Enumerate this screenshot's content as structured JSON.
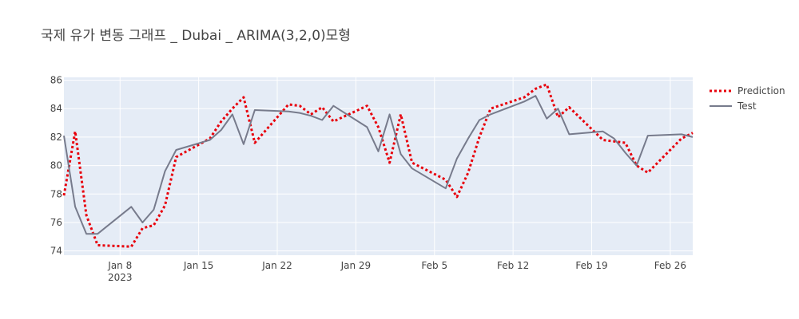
{
  "chart_data": {
    "type": "line",
    "title": "국제 유가 변동 그래프 _ Dubai _ ARIMA(3,2,0)모형",
    "xlabel": "",
    "ylabel": "",
    "x_range": [
      "2023-01-03",
      "2023-02-28"
    ],
    "ylim": [
      73.7,
      86.2
    ],
    "y_ticks": [
      74,
      76,
      78,
      80,
      82,
      84,
      86
    ],
    "x_ticks": [
      {
        "date": "2023-01-08",
        "label": "Jan 8",
        "sublabel": "2023"
      },
      {
        "date": "2023-01-15",
        "label": "Jan 15",
        "sublabel": ""
      },
      {
        "date": "2023-01-22",
        "label": "Jan 22",
        "sublabel": ""
      },
      {
        "date": "2023-01-29",
        "label": "Jan 29",
        "sublabel": ""
      },
      {
        "date": "2023-02-05",
        "label": "Feb 5",
        "sublabel": ""
      },
      {
        "date": "2023-02-12",
        "label": "Feb 12",
        "sublabel": ""
      },
      {
        "date": "2023-02-19",
        "label": "Feb 19",
        "sublabel": ""
      },
      {
        "date": "2023-02-26",
        "label": "Feb 26",
        "sublabel": ""
      }
    ],
    "grid": true,
    "legend_position": "top-right",
    "series": [
      {
        "name": "Prediction",
        "color": "#e8000b",
        "style": "dotted",
        "points": [
          [
            "2023-01-03",
            77.9
          ],
          [
            "2023-01-04",
            82.4
          ],
          [
            "2023-01-05",
            76.5
          ],
          [
            "2023-01-06",
            74.4
          ],
          [
            "2023-01-09",
            74.3
          ],
          [
            "2023-01-10",
            75.6
          ],
          [
            "2023-01-11",
            75.8
          ],
          [
            "2023-01-12",
            77.2
          ],
          [
            "2023-01-13",
            80.6
          ],
          [
            "2023-01-16",
            81.9
          ],
          [
            "2023-01-17",
            83.1
          ],
          [
            "2023-01-18",
            84.0
          ],
          [
            "2023-01-19",
            84.8
          ],
          [
            "2023-01-20",
            81.6
          ],
          [
            "2023-01-23",
            84.3
          ],
          [
            "2023-01-24",
            84.2
          ],
          [
            "2023-01-25",
            83.6
          ],
          [
            "2023-01-26",
            84.1
          ],
          [
            "2023-01-27",
            83.1
          ],
          [
            "2023-01-30",
            84.2
          ],
          [
            "2023-01-31",
            82.7
          ],
          [
            "2023-02-01",
            80.2
          ],
          [
            "2023-02-02",
            83.6
          ],
          [
            "2023-02-03",
            80.2
          ],
          [
            "2023-02-06",
            79.0
          ],
          [
            "2023-02-07",
            77.8
          ],
          [
            "2023-02-08",
            79.5
          ],
          [
            "2023-02-09",
            82.0
          ],
          [
            "2023-02-10",
            84.0
          ],
          [
            "2023-02-13",
            84.8
          ],
          [
            "2023-02-14",
            85.4
          ],
          [
            "2023-02-15",
            85.7
          ],
          [
            "2023-02-16",
            83.4
          ],
          [
            "2023-02-17",
            84.1
          ],
          [
            "2023-02-20",
            81.8
          ],
          [
            "2023-02-21",
            81.7
          ],
          [
            "2023-02-22",
            81.6
          ],
          [
            "2023-02-23",
            80.0
          ],
          [
            "2023-02-24",
            79.5
          ],
          [
            "2023-02-27",
            81.9
          ],
          [
            "2023-02-28",
            82.3
          ]
        ]
      },
      {
        "name": "Test",
        "color": "#777b8c",
        "style": "solid",
        "points": [
          [
            "2023-01-03",
            82.1
          ],
          [
            "2023-01-04",
            77.1
          ],
          [
            "2023-01-05",
            75.2
          ],
          [
            "2023-01-06",
            75.2
          ],
          [
            "2023-01-09",
            77.1
          ],
          [
            "2023-01-10",
            76.0
          ],
          [
            "2023-01-11",
            76.9
          ],
          [
            "2023-01-12",
            79.6
          ],
          [
            "2023-01-13",
            81.1
          ],
          [
            "2023-01-16",
            81.8
          ],
          [
            "2023-01-17",
            82.5
          ],
          [
            "2023-01-18",
            83.6
          ],
          [
            "2023-01-19",
            81.5
          ],
          [
            "2023-01-20",
            83.9
          ],
          [
            "2023-01-23",
            83.8
          ],
          [
            "2023-01-24",
            83.7
          ],
          [
            "2023-01-25",
            83.5
          ],
          [
            "2023-01-26",
            83.2
          ],
          [
            "2023-01-27",
            84.2
          ],
          [
            "2023-01-30",
            82.7
          ],
          [
            "2023-01-31",
            81.0
          ],
          [
            "2023-02-01",
            83.6
          ],
          [
            "2023-02-02",
            80.8
          ],
          [
            "2023-02-03",
            79.8
          ],
          [
            "2023-02-06",
            78.4
          ],
          [
            "2023-02-07",
            80.5
          ],
          [
            "2023-02-08",
            81.9
          ],
          [
            "2023-02-09",
            83.2
          ],
          [
            "2023-02-10",
            83.6
          ],
          [
            "2023-02-13",
            84.5
          ],
          [
            "2023-02-14",
            84.9
          ],
          [
            "2023-02-15",
            83.3
          ],
          [
            "2023-02-16",
            84.0
          ],
          [
            "2023-02-17",
            82.2
          ],
          [
            "2023-02-20",
            82.4
          ],
          [
            "2023-02-21",
            81.9
          ],
          [
            "2023-02-22",
            80.9
          ],
          [
            "2023-02-23",
            80.0
          ],
          [
            "2023-02-24",
            82.1
          ],
          [
            "2023-02-27",
            82.2
          ],
          [
            "2023-02-28",
            82.0
          ]
        ]
      }
    ]
  }
}
